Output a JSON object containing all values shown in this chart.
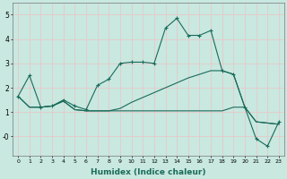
{
  "xlabel": "Humidex (Indice chaleur)",
  "background_color": "#c8e8e0",
  "grid_color": "#e8c8c8",
  "line_color": "#1a6b5a",
  "xlim": [
    -0.5,
    23.5
  ],
  "ylim": [
    -0.8,
    5.5
  ],
  "line1_x": [
    0,
    1,
    2,
    3,
    4,
    5,
    6,
    7,
    8,
    9,
    10,
    11,
    12,
    13,
    14,
    15,
    16,
    17,
    18,
    19,
    20,
    21,
    22,
    23
  ],
  "line1_y": [
    1.65,
    2.5,
    1.2,
    1.25,
    1.5,
    1.25,
    1.1,
    2.1,
    2.35,
    3.0,
    3.05,
    3.05,
    3.0,
    4.45,
    4.85,
    4.15,
    4.15,
    4.35,
    2.7,
    2.55,
    1.2,
    -0.1,
    -0.4,
    0.6
  ],
  "line2_x": [
    0,
    1,
    2,
    3,
    4,
    5,
    6,
    7,
    8,
    9,
    10,
    11,
    12,
    13,
    14,
    15,
    16,
    17,
    18,
    19,
    20,
    21,
    22,
    23
  ],
  "line2_y": [
    1.65,
    1.2,
    1.2,
    1.25,
    1.45,
    1.1,
    1.05,
    1.05,
    1.05,
    1.05,
    1.05,
    1.05,
    1.05,
    1.05,
    1.05,
    1.05,
    1.05,
    1.05,
    1.05,
    1.2,
    1.2,
    0.6,
    0.55,
    0.5
  ],
  "line3_x": [
    0,
    1,
    2,
    3,
    4,
    5,
    6,
    7,
    8,
    9,
    10,
    11,
    12,
    13,
    14,
    15,
    16,
    17,
    18,
    19,
    20,
    21,
    22,
    23
  ],
  "line3_y": [
    1.65,
    1.2,
    1.2,
    1.25,
    1.45,
    1.1,
    1.05,
    1.05,
    1.05,
    1.15,
    1.4,
    1.6,
    1.8,
    2.0,
    2.2,
    2.4,
    2.55,
    2.7,
    2.7,
    2.55,
    1.2,
    0.6,
    0.55,
    0.5
  ]
}
